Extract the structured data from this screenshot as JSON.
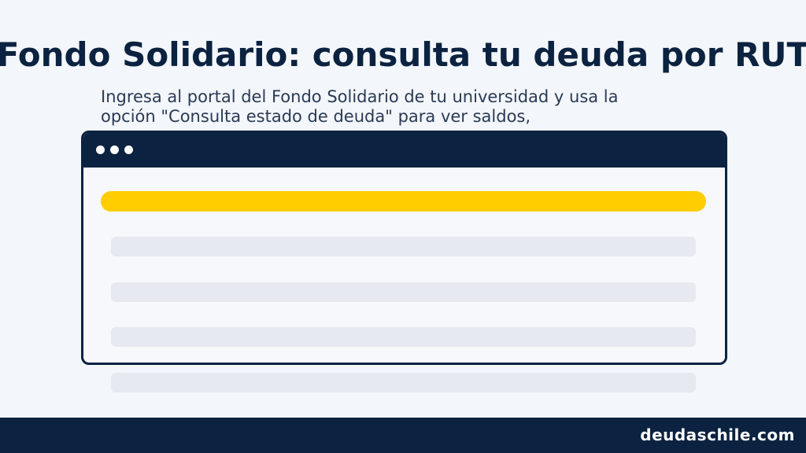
{
  "title": "Fondo Solidario: consulta tu deuda por RUT",
  "subtitle": "Ingresa al portal del Fondo Solidario de tu universidad y usa la opción \"Consulta estado de deuda\" para ver saldos,",
  "footer": {
    "brand": "deudaschile.com"
  },
  "colors": {
    "navy": "#0b2240",
    "accent_yellow": "#ffcd00",
    "placeholder_gray": "#e6e9ef",
    "background": "#f3f6fa"
  },
  "browser_mock": {
    "window_dots": [
      "dot",
      "dot",
      "dot"
    ],
    "highlight_rows": 1,
    "placeholder_rows": 4
  }
}
